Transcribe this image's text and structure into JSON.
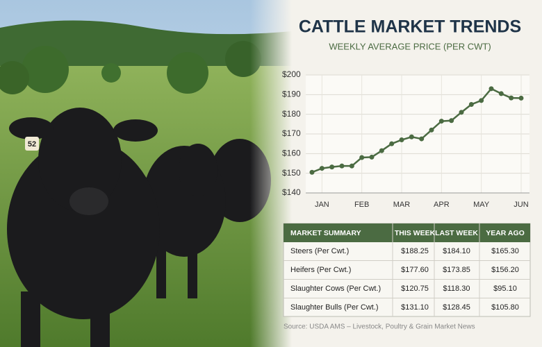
{
  "photo": {
    "ear_tag": "52"
  },
  "chart_data": {
    "type": "line",
    "title": "CATTLE MARKET TRENDS",
    "subtitle": "WEEKLY AVERAGE PRICE (PER CWT)",
    "categories": [
      null,
      "JAN",
      null,
      null,
      null,
      "FEB",
      null,
      null,
      null,
      "MAR",
      null,
      null,
      null,
      "APR",
      null,
      null,
      null,
      "MAY",
      null,
      null,
      null,
      "JUN"
    ],
    "series": [
      {
        "color": "#4b6b42",
        "values": [
          150.5,
          152.5,
          153.2,
          153.7,
          153.7,
          158,
          158.2,
          161.5,
          165,
          167,
          168.5,
          167.5,
          172,
          176.5,
          176.8,
          181,
          185,
          187,
          193,
          190.5,
          188.3,
          188.2
        ]
      }
    ],
    "ylim": [
      140,
      200
    ],
    "yticks": [
      {
        "value": 140,
        "label": "$140"
      },
      {
        "value": 150,
        "label": "$150"
      },
      {
        "value": 160,
        "label": "$160"
      },
      {
        "value": 170,
        "label": "$170"
      },
      {
        "value": 180,
        "label": "$180"
      },
      {
        "value": 190,
        "label": "$190"
      },
      {
        "value": 200,
        "label": "$200"
      }
    ],
    "grid": true
  },
  "table": {
    "header": [
      "MARKET SUMMARY",
      "THIS WEEK",
      "LAST WEEK",
      "YEAR AGO"
    ],
    "rows": [
      [
        "Steers (Per Cwt.)",
        "$188.25",
        "$184.10",
        "$165.30"
      ],
      [
        "Heifers (Per Cwt.)",
        "$177.60",
        "$173.85",
        "$156.20"
      ],
      [
        "Slaughter Cows (Per Cwt.)",
        "$120.75",
        "$118.30",
        "$95.10"
      ],
      [
        "Slaughter Bulls (Per Cwt.)",
        "$131.10",
        "$128.45",
        "$105.80"
      ]
    ]
  },
  "source": "Source: USDA AMS – Livestock, Poultry & Grain Market News"
}
